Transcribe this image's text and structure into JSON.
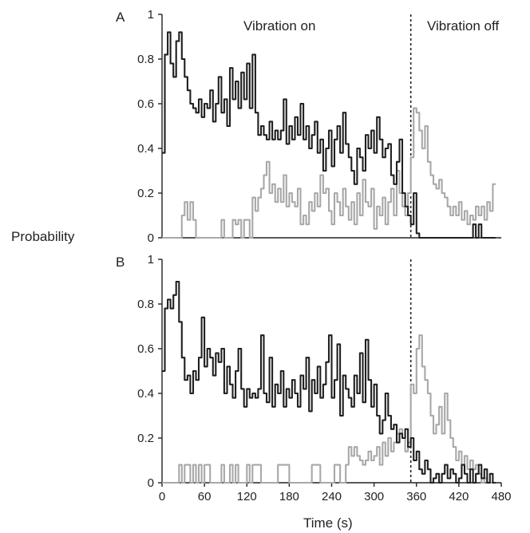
{
  "figure": {
    "ylabel": "Probability",
    "xlabel": "Time (s)"
  },
  "colors": {
    "dark_series": "#1f1f1f",
    "light_series": "#a8a8a8",
    "axis": "#222222"
  },
  "chart_data": [
    {
      "type": "line",
      "panel": "A",
      "title": "",
      "xlabel": "",
      "ylabel": "",
      "xlim": [
        0,
        480
      ],
      "ylim": [
        0,
        1
      ],
      "yticks": [
        "0",
        "0.2",
        "0.4",
        "0.6",
        "0.8",
        "1"
      ],
      "xticks": [],
      "grid": false,
      "vline": {
        "x": 352,
        "style": "dotted"
      },
      "annotations": [
        {
          "text": "Vibration on",
          "x": 210,
          "y": 0.97
        },
        {
          "text": "Vibration off",
          "x": 420,
          "y": 0.97
        }
      ],
      "series": [
        {
          "color_role": "dark",
          "x": [
            0,
            4,
            8,
            12,
            16,
            20,
            24,
            28,
            32,
            36,
            40,
            44,
            48,
            52,
            56,
            60,
            64,
            68,
            72,
            76,
            80,
            84,
            88,
            92,
            96,
            100,
            104,
            108,
            112,
            116,
            120,
            124,
            128,
            132,
            136,
            140,
            144,
            148,
            152,
            156,
            160,
            164,
            168,
            172,
            176,
            180,
            184,
            188,
            192,
            196,
            200,
            204,
            208,
            212,
            216,
            220,
            224,
            228,
            232,
            236,
            240,
            244,
            248,
            252,
            256,
            260,
            264,
            268,
            272,
            276,
            280,
            284,
            288,
            292,
            296,
            300,
            304,
            308,
            312,
            316,
            320,
            324,
            328,
            332,
            336,
            340,
            344,
            348,
            352,
            356,
            360,
            364,
            368,
            372,
            376,
            380,
            384,
            388,
            392,
            396,
            400,
            404,
            408,
            412,
            416,
            420,
            424,
            428,
            432,
            436,
            440,
            444,
            448,
            452,
            456,
            460,
            464,
            468
          ],
          "y": [
            0.38,
            0.82,
            0.92,
            0.78,
            0.72,
            0.88,
            0.92,
            0.8,
            0.72,
            0.66,
            0.6,
            0.58,
            0.56,
            0.62,
            0.54,
            0.6,
            0.58,
            0.66,
            0.52,
            0.6,
            0.72,
            0.56,
            0.62,
            0.5,
            0.76,
            0.62,
            0.7,
            0.58,
            0.74,
            0.62,
            0.78,
            0.58,
            0.82,
            0.56,
            0.46,
            0.5,
            0.46,
            0.44,
            0.52,
            0.44,
            0.48,
            0.44,
            0.48,
            0.62,
            0.42,
            0.5,
            0.44,
            0.54,
            0.46,
            0.6,
            0.44,
            0.5,
            0.4,
            0.46,
            0.52,
            0.38,
            0.44,
            0.3,
            0.4,
            0.48,
            0.32,
            0.44,
            0.5,
            0.38,
            0.56,
            0.42,
            0.36,
            0.3,
            0.24,
            0.4,
            0.36,
            0.3,
            0.46,
            0.4,
            0.48,
            0.38,
            0.54,
            0.44,
            0.36,
            0.4,
            0.42,
            0.28,
            0.24,
            0.34,
            0.44,
            0.2,
            0.14,
            0.1,
            0.06,
            0.2,
            0.02,
            0.0,
            0.0,
            0.0,
            0.0,
            0.0,
            0.0,
            0.0,
            0.0,
            0.0,
            0.0,
            0.0,
            0.0,
            0.0,
            0.0,
            0.0,
            0.0,
            0.0,
            0.0,
            0.0,
            0.06,
            0.0,
            0.06,
            0.0,
            0.0,
            0.0,
            0.0,
            0.0
          ]
        },
        {
          "color_role": "light",
          "x": [
            0,
            4,
            8,
            12,
            16,
            20,
            24,
            28,
            32,
            36,
            40,
            44,
            48,
            52,
            56,
            60,
            64,
            68,
            72,
            76,
            80,
            84,
            88,
            92,
            96,
            100,
            104,
            108,
            112,
            116,
            120,
            124,
            128,
            132,
            136,
            140,
            144,
            148,
            152,
            156,
            160,
            164,
            168,
            172,
            176,
            180,
            184,
            188,
            192,
            196,
            200,
            204,
            208,
            212,
            216,
            220,
            224,
            228,
            232,
            236,
            240,
            244,
            248,
            252,
            256,
            260,
            264,
            268,
            272,
            276,
            280,
            284,
            288,
            292,
            296,
            300,
            304,
            308,
            312,
            316,
            320,
            324,
            328,
            332,
            336,
            340,
            344,
            348,
            352,
            356,
            360,
            364,
            368,
            372,
            376,
            380,
            384,
            388,
            392,
            396,
            400,
            404,
            408,
            412,
            416,
            420,
            424,
            428,
            432,
            436,
            440,
            444,
            448,
            452,
            456,
            460,
            464,
            468
          ],
          "y": [
            0.0,
            0.0,
            0.0,
            0.0,
            0.0,
            0.0,
            0.0,
            0.1,
            0.16,
            0.08,
            0.16,
            0.08,
            0.0,
            0.0,
            0.0,
            0.0,
            0.0,
            0.0,
            0.0,
            0.0,
            0.0,
            0.08,
            0.0,
            0.0,
            0.0,
            0.08,
            0.06,
            0.08,
            0.0,
            0.08,
            0.08,
            0.0,
            0.18,
            0.12,
            0.18,
            0.22,
            0.28,
            0.34,
            0.2,
            0.24,
            0.16,
            0.22,
            0.16,
            0.28,
            0.14,
            0.2,
            0.16,
            0.14,
            0.22,
            0.06,
            0.1,
            0.06,
            0.16,
            0.12,
            0.2,
            0.14,
            0.28,
            0.2,
            0.22,
            0.12,
            0.06,
            0.2,
            0.16,
            0.1,
            0.22,
            0.14,
            0.08,
            0.16,
            0.06,
            0.2,
            0.1,
            0.26,
            0.16,
            0.14,
            0.22,
            0.04,
            0.14,
            0.1,
            0.18,
            0.06,
            0.16,
            0.22,
            0.1,
            0.3,
            0.2,
            0.14,
            0.1,
            0.2,
            0.36,
            0.58,
            0.56,
            0.48,
            0.4,
            0.5,
            0.34,
            0.28,
            0.24,
            0.22,
            0.26,
            0.2,
            0.18,
            0.14,
            0.1,
            0.14,
            0.1,
            0.16,
            0.08,
            0.12,
            0.06,
            0.1,
            0.08,
            0.14,
            0.1,
            0.14,
            0.08,
            0.16,
            0.12,
            0.24
          ]
        }
      ]
    },
    {
      "type": "line",
      "panel": "B",
      "title": "",
      "xlabel": "Time (s)",
      "ylabel": "",
      "xlim": [
        0,
        480
      ],
      "ylim": [
        0,
        1
      ],
      "yticks": [
        "0",
        "0.2",
        "0.4",
        "0.6",
        "0.8",
        "1"
      ],
      "xticks": [
        "0",
        "60",
        "120",
        "180",
        "240",
        "300",
        "360",
        "420",
        "480"
      ],
      "grid": false,
      "vline": {
        "x": 352,
        "style": "dotted"
      },
      "annotations": [],
      "series": [
        {
          "color_role": "dark",
          "x": [
            0,
            4,
            8,
            12,
            16,
            20,
            24,
            28,
            32,
            36,
            40,
            44,
            48,
            52,
            56,
            60,
            64,
            68,
            72,
            76,
            80,
            84,
            88,
            92,
            96,
            100,
            104,
            108,
            112,
            116,
            120,
            124,
            128,
            132,
            136,
            140,
            144,
            148,
            152,
            156,
            160,
            164,
            168,
            172,
            176,
            180,
            184,
            188,
            192,
            196,
            200,
            204,
            208,
            212,
            216,
            220,
            224,
            228,
            232,
            236,
            240,
            244,
            248,
            252,
            256,
            260,
            264,
            268,
            272,
            276,
            280,
            284,
            288,
            292,
            296,
            300,
            304,
            308,
            312,
            316,
            320,
            324,
            328,
            332,
            336,
            340,
            344,
            348,
            352,
            356,
            360,
            364,
            368,
            372,
            376,
            380,
            384,
            388,
            392,
            396,
            400,
            404,
            408,
            412,
            416,
            420,
            424,
            428,
            432,
            436,
            440,
            444,
            448,
            452,
            456,
            460,
            464,
            468
          ],
          "y": [
            0.5,
            0.78,
            0.82,
            0.78,
            0.84,
            0.9,
            0.72,
            0.56,
            0.46,
            0.48,
            0.4,
            0.5,
            0.46,
            0.56,
            0.74,
            0.52,
            0.6,
            0.56,
            0.48,
            0.58,
            0.54,
            0.6,
            0.4,
            0.52,
            0.44,
            0.38,
            0.5,
            0.6,
            0.42,
            0.34,
            0.42,
            0.38,
            0.4,
            0.38,
            0.42,
            0.66,
            0.4,
            0.36,
            0.56,
            0.34,
            0.44,
            0.4,
            0.5,
            0.34,
            0.42,
            0.38,
            0.46,
            0.4,
            0.34,
            0.48,
            0.42,
            0.56,
            0.32,
            0.46,
            0.4,
            0.52,
            0.38,
            0.44,
            0.54,
            0.66,
            0.38,
            0.46,
            0.62,
            0.3,
            0.48,
            0.42,
            0.38,
            0.34,
            0.48,
            0.4,
            0.58,
            0.36,
            0.64,
            0.46,
            0.34,
            0.44,
            0.3,
            0.22,
            0.28,
            0.4,
            0.3,
            0.24,
            0.26,
            0.18,
            0.22,
            0.2,
            0.24,
            0.16,
            0.2,
            0.1,
            0.14,
            0.06,
            0.04,
            0.1,
            0.06,
            0.0,
            0.02,
            0.04,
            0.0,
            0.04,
            0.08,
            0.02,
            0.06,
            0.04,
            0.0,
            0.02,
            0.08,
            0.04,
            0.0,
            0.06,
            0.0,
            0.04,
            0.08,
            0.02,
            0.06,
            0.0,
            0.04,
            0.0
          ]
        },
        {
          "color_role": "light",
          "x": [
            0,
            4,
            8,
            12,
            16,
            20,
            24,
            28,
            32,
            36,
            40,
            44,
            48,
            52,
            56,
            60,
            64,
            68,
            72,
            76,
            80,
            84,
            88,
            92,
            96,
            100,
            104,
            108,
            112,
            116,
            120,
            124,
            128,
            132,
            136,
            140,
            144,
            148,
            152,
            156,
            160,
            164,
            168,
            172,
            176,
            180,
            184,
            188,
            192,
            196,
            200,
            204,
            208,
            212,
            216,
            220,
            224,
            228,
            232,
            236,
            240,
            244,
            248,
            252,
            256,
            260,
            264,
            268,
            272,
            276,
            280,
            284,
            288,
            292,
            296,
            300,
            304,
            308,
            312,
            316,
            320,
            324,
            328,
            332,
            336,
            340,
            344,
            348,
            352,
            356,
            360,
            364,
            368,
            372,
            376,
            380,
            384,
            388,
            392,
            396,
            400,
            404,
            408,
            412,
            416,
            420,
            424,
            428,
            432,
            436,
            440,
            444,
            448,
            452,
            456,
            460,
            464,
            468
          ],
          "y": [
            0.0,
            0.0,
            0.0,
            0.0,
            0.0,
            0.0,
            0.08,
            0.0,
            0.08,
            0.08,
            0.0,
            0.08,
            0.0,
            0.08,
            0.0,
            0.08,
            0.08,
            0.0,
            0.0,
            0.0,
            0.0,
            0.08,
            0.0,
            0.0,
            0.08,
            0.0,
            0.08,
            0.0,
            0.0,
            0.0,
            0.08,
            0.0,
            0.08,
            0.08,
            0.08,
            0.0,
            0.0,
            0.0,
            0.0,
            0.0,
            0.0,
            0.08,
            0.08,
            0.08,
            0.08,
            0.0,
            0.0,
            0.0,
            0.0,
            0.0,
            0.0,
            0.0,
            0.0,
            0.08,
            0.08,
            0.08,
            0.0,
            0.0,
            0.0,
            0.0,
            0.0,
            0.08,
            0.08,
            0.0,
            0.0,
            0.08,
            0.16,
            0.12,
            0.16,
            0.12,
            0.1,
            0.08,
            0.1,
            0.14,
            0.1,
            0.12,
            0.16,
            0.08,
            0.18,
            0.12,
            0.2,
            0.14,
            0.18,
            0.22,
            0.24,
            0.2,
            0.14,
            0.18,
            0.44,
            0.4,
            0.6,
            0.66,
            0.52,
            0.46,
            0.4,
            0.3,
            0.22,
            0.26,
            0.34,
            0.22,
            0.4,
            0.28,
            0.2,
            0.16,
            0.1,
            0.14,
            0.08,
            0.12,
            0.06,
            0.1,
            0.06,
            0.08,
            0.04,
            0.0,
            0.02,
            0.0,
            0.0,
            0.0
          ]
        }
      ]
    }
  ]
}
